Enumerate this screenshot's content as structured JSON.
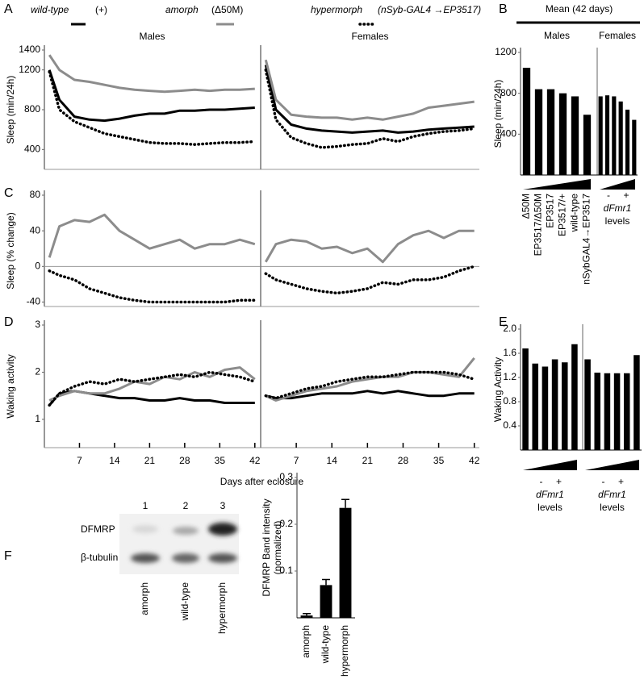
{
  "chart_data": [
    {
      "type": "line",
      "panel": "A",
      "ylabel": "Sleep (min/24h)",
      "x": [
        1,
        3,
        6,
        9,
        12,
        15,
        18,
        21,
        24,
        27,
        30,
        33,
        36,
        39,
        42
      ],
      "xlim": [
        0,
        43
      ],
      "ylim": [
        200,
        1400
      ],
      "yticks": [
        400,
        800,
        1200,
        1400
      ],
      "series": [
        {
          "name": "wild-type",
          "genotype": "(+)",
          "color": "#000000",
          "style": "solid"
        },
        {
          "name": "amorph",
          "genotype": "(Δ50M)",
          "color": "#8c8c8c",
          "style": "solid"
        },
        {
          "name": "hypermorph",
          "genotype": "(nSyb-GAL4 →EP3517)",
          "color": "#000000",
          "style": "dotted"
        }
      ],
      "subplots": [
        {
          "title": "Males",
          "values": [
            [
              1200,
              900,
              730,
              700,
              690,
              710,
              740,
              760,
              760,
              790,
              790,
              800,
              800,
              810,
              820
            ],
            [
              1350,
              1200,
              1100,
              1080,
              1050,
              1020,
              1000,
              990,
              980,
              990,
              1000,
              990,
              1000,
              1000,
              1010
            ],
            [
              1180,
              800,
              680,
              620,
              560,
              530,
              500,
              470,
              460,
              460,
              450,
              460,
              470,
              470,
              480
            ]
          ]
        },
        {
          "title": "Females",
          "values": [
            [
              1250,
              800,
              650,
              610,
              590,
              580,
              570,
              580,
              590,
              570,
              580,
              600,
              610,
              620,
              630
            ],
            [
              1300,
              900,
              750,
              730,
              720,
              720,
              700,
              720,
              700,
              730,
              760,
              820,
              840,
              860,
              880
            ],
            [
              1200,
              700,
              520,
              460,
              420,
              430,
              450,
              460,
              510,
              480,
              530,
              560,
              580,
              590,
              610
            ]
          ]
        }
      ]
    },
    {
      "type": "bar",
      "panel": "B",
      "title": "Mean (42 days)",
      "ylabel": "Sleep (min/24h)",
      "ylim": [
        0,
        1200
      ],
      "yticks": [
        400,
        800,
        1200
      ],
      "color": "#000000",
      "categories": [
        "Δ50M",
        "EP3517/Δ50M",
        "EP3517",
        "EP3517/+",
        "wild-type",
        "nSybGAL4→EP3517"
      ],
      "subplots": [
        {
          "title": "Males",
          "values": [
            1050,
            840,
            840,
            800,
            770,
            590
          ]
        },
        {
          "title": "Females",
          "values": [
            770,
            780,
            770,
            720,
            640,
            540
          ]
        }
      ],
      "levels": {
        "low": "-",
        "high": "+",
        "gene": "dFmr1",
        "word": "levels"
      }
    },
    {
      "type": "line",
      "panel": "C",
      "ylabel": "Sleep (% change)",
      "x": [
        1,
        3,
        6,
        9,
        12,
        15,
        18,
        21,
        24,
        27,
        30,
        33,
        36,
        39,
        42
      ],
      "xlim": [
        0,
        43
      ],
      "ylim": [
        -45,
        80
      ],
      "yticks": [
        -40,
        0,
        40,
        80
      ],
      "series": [
        {
          "color": "#8c8c8c",
          "style": "solid"
        },
        {
          "color": "#000000",
          "style": "dotted"
        }
      ],
      "subplots": [
        {
          "values": [
            [
              10,
              45,
              52,
              50,
              58,
              40,
              30,
              20,
              25,
              30,
              20,
              25,
              25,
              30,
              25
            ],
            [
              -5,
              -10,
              -15,
              -25,
              -30,
              -35,
              -38,
              -40,
              -40,
              -40,
              -40,
              -40,
              -40,
              -38,
              -38
            ]
          ]
        },
        {
          "values": [
            [
              5,
              25,
              30,
              28,
              20,
              22,
              15,
              20,
              5,
              25,
              35,
              40,
              32,
              40,
              40
            ],
            [
              -8,
              -15,
              -20,
              -25,
              -28,
              -30,
              -28,
              -25,
              -18,
              -20,
              -15,
              -15,
              -12,
              -5,
              0
            ]
          ]
        }
      ]
    },
    {
      "type": "line",
      "panel": "D",
      "ylabel": "Waking activity",
      "xlabel": "Days after eclosure",
      "x": [
        1,
        3,
        6,
        9,
        12,
        15,
        18,
        21,
        24,
        27,
        30,
        33,
        36,
        39,
        42
      ],
      "xlim": [
        0,
        43
      ],
      "xticks": [
        7,
        14,
        21,
        28,
        35,
        42
      ],
      "ylim": [
        0.4,
        3
      ],
      "yticks": [
        1,
        2,
        3
      ],
      "series": [
        {
          "color": "#000000",
          "style": "solid"
        },
        {
          "color": "#8c8c8c",
          "style": "solid"
        },
        {
          "color": "#000000",
          "style": "dotted"
        }
      ],
      "subplots": [
        {
          "values": [
            [
              1.3,
              1.55,
              1.6,
              1.55,
              1.5,
              1.45,
              1.45,
              1.4,
              1.4,
              1.45,
              1.4,
              1.4,
              1.35,
              1.35,
              1.35
            ],
            [
              1.4,
              1.5,
              1.6,
              1.55,
              1.55,
              1.65,
              1.8,
              1.75,
              1.9,
              1.85,
              2.0,
              1.9,
              2.05,
              2.1,
              1.85
            ],
            [
              1.3,
              1.55,
              1.7,
              1.8,
              1.75,
              1.85,
              1.8,
              1.85,
              1.9,
              1.95,
              1.9,
              2.0,
              1.95,
              1.9,
              1.8
            ]
          ]
        },
        {
          "values": [
            [
              1.5,
              1.45,
              1.45,
              1.5,
              1.55,
              1.55,
              1.55,
              1.6,
              1.55,
              1.6,
              1.55,
              1.5,
              1.5,
              1.55,
              1.55
            ],
            [
              1.5,
              1.4,
              1.5,
              1.6,
              1.65,
              1.7,
              1.8,
              1.85,
              1.9,
              1.9,
              2.0,
              2.0,
              1.95,
              1.9,
              2.3
            ],
            [
              1.5,
              1.45,
              1.55,
              1.65,
              1.7,
              1.8,
              1.85,
              1.9,
              1.9,
              1.95,
              2.0,
              2.0,
              2.0,
              1.95,
              1.85
            ]
          ]
        }
      ]
    },
    {
      "type": "bar",
      "panel": "E",
      "ylabel": "Waking Activity",
      "ylim": [
        0,
        2
      ],
      "yticks": [
        0.4,
        0.8,
        1.2,
        1.6,
        {
          "value": 2,
          "label": "2.0"
        }
      ],
      "color": "#000000",
      "subplots": [
        {
          "values": [
            1.68,
            1.43,
            1.38,
            1.5,
            1.45,
            1.75
          ]
        },
        {
          "values": [
            1.5,
            1.28,
            1.27,
            1.27,
            1.27,
            1.57
          ]
        }
      ],
      "levels": {
        "low": "-",
        "high": "+",
        "gene": "dFmr1",
        "word": "levels"
      }
    },
    {
      "type": "bar",
      "panel": "F",
      "ylabel": [
        "DFMRP Band intensity",
        "(normalized)"
      ],
      "ylim": [
        0,
        0.3
      ],
      "yticks": [
        0.1,
        0.2,
        0.3
      ],
      "color": "#000000",
      "categories": [
        "amorph",
        "wild-type",
        "hypermorph"
      ],
      "values": [
        0.005,
        0.07,
        0.235
      ],
      "errors": [
        0.004,
        0.012,
        0.018
      ],
      "blot": {
        "lanes": [
          "1",
          "2",
          "3"
        ],
        "bands": [
          "DFMRP",
          "β-tubulin"
        ],
        "samples": [
          "amorph",
          "wild-type",
          "hypermorph"
        ]
      }
    }
  ]
}
